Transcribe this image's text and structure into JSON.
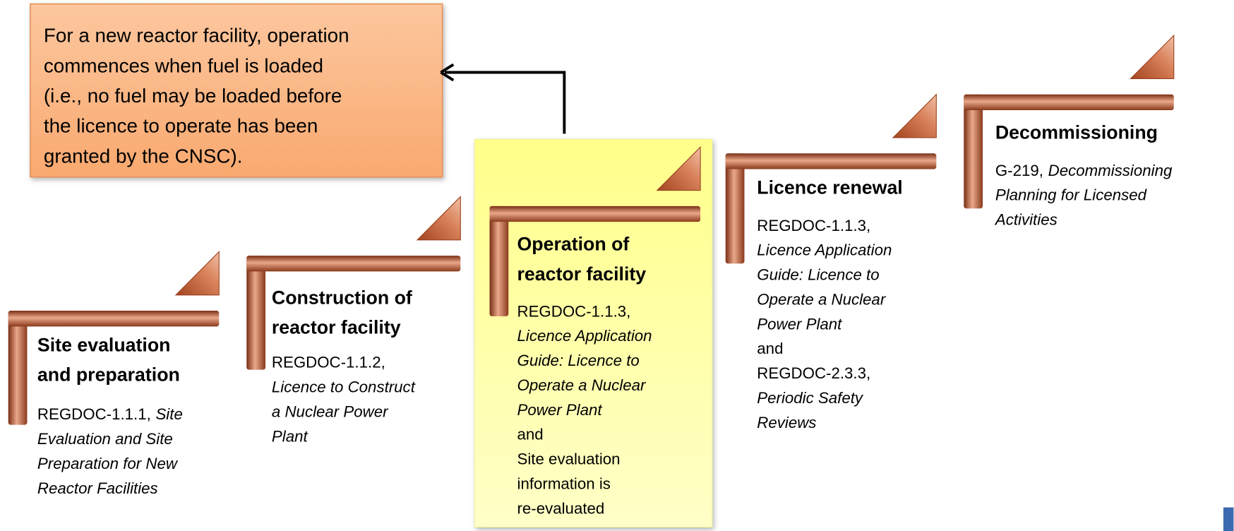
{
  "callout": {
    "lines": [
      "For a new reactor facility, operation",
      "commences when fuel is loaded",
      "(i.e., no fuel may be loaded before",
      "the licence to operate has been",
      "granted by the CNSC)."
    ]
  },
  "steps": [
    {
      "title": [
        "Site evaluation",
        "and preparation"
      ],
      "body": [
        [
          {
            "text": "REGDOC-1.1.1,"
          },
          {
            "text": "Site",
            "italic": true
          }
        ],
        [
          {
            "text": "Evaluation and Site",
            "italic": true
          }
        ],
        [
          {
            "text": "Preparation for New",
            "italic": true
          }
        ],
        [
          {
            "text": "Reactor Facilities",
            "italic": true
          }
        ]
      ]
    },
    {
      "title": [
        "Construction of",
        "reactor facility"
      ],
      "body": [
        [
          {
            "text": "REGDOC-1.1.2,"
          }
        ],
        [
          {
            "text": "Licence to Construct",
            "italic": true
          }
        ],
        [
          {
            "text": "a Nuclear Power",
            "italic": true
          }
        ],
        [
          {
            "text": "Plant",
            "italic": true
          }
        ]
      ]
    },
    {
      "title": [
        "Operation of",
        "reactor facility"
      ],
      "highlight": true,
      "body": [
        [
          {
            "text": "REGDOC-1.1.3,"
          }
        ],
        [
          {
            "text": "Licence Application",
            "italic": true
          }
        ],
        [
          {
            "text": "Guide: Licence to",
            "italic": true
          }
        ],
        [
          {
            "text": "Operate a Nuclear",
            "italic": true
          }
        ],
        [
          {
            "text": "Power Plant",
            "italic": true
          }
        ],
        [
          {
            "text": "and"
          }
        ],
        [
          {
            "text": "Site evaluation"
          }
        ],
        [
          {
            "text": "information is"
          }
        ],
        [
          {
            "text": "re-evaluated"
          }
        ]
      ]
    },
    {
      "title": [
        "Licence renewal"
      ],
      "body": [
        [
          {
            "text": "REGDOC-1.1.3,"
          }
        ],
        [
          {
            "text": "Licence Application",
            "italic": true
          }
        ],
        [
          {
            "text": "Guide: Licence to",
            "italic": true
          }
        ],
        [
          {
            "text": "Operate a Nuclear",
            "italic": true
          }
        ],
        [
          {
            "text": "Power Plant",
            "italic": true
          }
        ],
        [
          {
            "text": "and"
          }
        ],
        [
          {
            "text": "REGDOC-2.3.3,"
          }
        ],
        [
          {
            "text": "Periodic Safety",
            "italic": true
          }
        ],
        [
          {
            "text": "Reviews",
            "italic": true
          }
        ]
      ]
    },
    {
      "title": [
        "Decommissioning"
      ],
      "body": [
        [
          {
            "text": "G-219,"
          },
          {
            "text": "Decommissioning",
            "italic": true
          }
        ],
        [
          {
            "text": "Planning for Licensed",
            "italic": true
          }
        ],
        [
          {
            "text": "Activities",
            "italic": true
          }
        ]
      ]
    }
  ]
}
